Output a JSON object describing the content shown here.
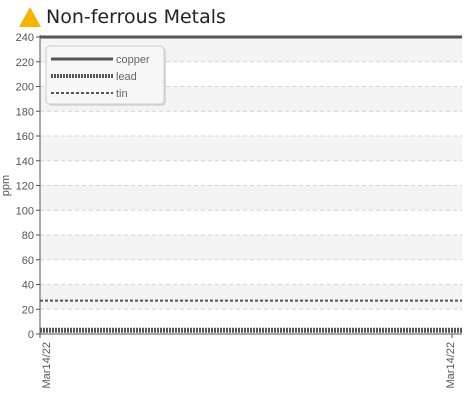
{
  "header": {
    "title": "Non-ferrous Metals",
    "status_icon": "warning-triangle-icon",
    "status_color": "#f5b400"
  },
  "chart_data": {
    "type": "line",
    "title": "Non-ferrous Metals",
    "xlabel": "",
    "ylabel": "ppm",
    "x": [
      "Mar14/22",
      "Mar14/22"
    ],
    "x_tick_labels": [
      "Mar14/22",
      "Mar14/22"
    ],
    "ylim": [
      0,
      240
    ],
    "y_ticks": [
      0,
      20,
      40,
      60,
      80,
      100,
      120,
      140,
      160,
      180,
      200,
      220,
      240
    ],
    "grid": true,
    "legend_position": "top-left",
    "series": [
      {
        "name": "copper",
        "values": [
          240,
          240
        ],
        "style": "solid",
        "color": "#555555"
      },
      {
        "name": "lead",
        "values": [
          3,
          3
        ],
        "style": "dense-dashed",
        "color": "#555555"
      },
      {
        "name": "tin",
        "values": [
          27,
          27
        ],
        "style": "dashed",
        "color": "#555555"
      }
    ],
    "colors": {
      "series": "#555555",
      "axis": "#555555",
      "grid": "#d4d4d4",
      "band": "#f4f4f4"
    }
  }
}
